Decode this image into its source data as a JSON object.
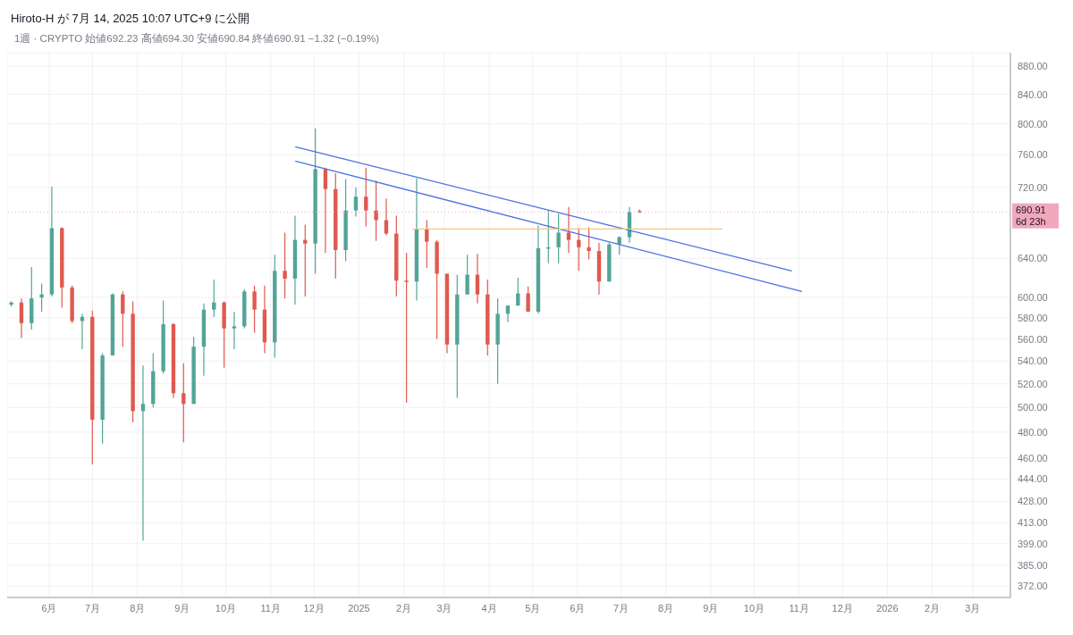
{
  "chart_data": {
    "type": "candlestick",
    "title": "Hiroto-H が 7月 14, 2025 10:07 UTC+9 に公開",
    "subtitle": "1週 · CRYPTO  始値692.23  高値694.30  安値690.84  終値690.91  −1.32 (−0.19%)",
    "x": [
      "2024-05-06",
      "2024-05-13",
      "2024-05-20",
      "2024-05-27",
      "2024-06-03",
      "2024-06-10",
      "2024-06-17",
      "2024-06-24",
      "2024-07-01",
      "2024-07-08",
      "2024-07-15",
      "2024-07-22",
      "2024-07-29",
      "2024-08-05",
      "2024-08-12",
      "2024-08-19",
      "2024-08-26",
      "2024-09-02",
      "2024-09-09",
      "2024-09-16",
      "2024-09-23",
      "2024-09-30",
      "2024-10-07",
      "2024-10-14",
      "2024-10-21",
      "2024-10-28",
      "2024-11-04",
      "2024-11-11",
      "2024-11-18",
      "2024-11-25",
      "2024-12-02",
      "2024-12-09",
      "2024-12-16",
      "2024-12-23",
      "2024-12-30",
      "2025-01-06",
      "2025-01-13",
      "2025-01-20",
      "2025-01-27",
      "2025-02-03",
      "2025-02-10",
      "2025-02-17",
      "2025-02-24",
      "2025-03-03",
      "2025-03-10",
      "2025-03-17",
      "2025-03-24",
      "2025-03-31",
      "2025-04-07",
      "2025-04-14",
      "2025-04-21",
      "2025-04-28",
      "2025-05-05",
      "2025-05-12",
      "2025-05-19",
      "2025-05-26",
      "2025-06-02",
      "2025-06-09",
      "2025-06-16",
      "2025-06-23",
      "2025-06-30",
      "2025-07-07",
      "2025-07-14"
    ],
    "ohlc": [
      [
        593,
        596,
        591,
        595
      ],
      [
        595,
        599,
        561,
        575
      ],
      [
        575,
        631,
        569,
        599
      ],
      [
        600,
        614,
        586,
        603
      ],
      [
        603,
        721,
        601,
        673
      ],
      [
        673,
        674,
        590,
        610
      ],
      [
        610,
        612,
        575,
        577
      ],
      [
        577,
        584,
        551,
        581
      ],
      [
        581,
        587,
        455,
        490
      ],
      [
        490,
        547,
        471,
        545
      ],
      [
        545,
        604,
        545,
        603
      ],
      [
        603,
        606,
        553,
        584
      ],
      [
        584,
        596,
        488,
        497
      ],
      [
        497,
        536,
        401,
        503
      ],
      [
        503,
        547,
        500,
        531
      ],
      [
        531,
        597,
        529,
        574
      ],
      [
        574,
        575,
        508,
        512
      ],
      [
        512,
        538,
        472,
        503
      ],
      [
        503,
        562,
        503,
        553
      ],
      [
        553,
        594,
        527,
        588
      ],
      [
        588,
        618,
        581,
        595
      ],
      [
        595,
        596,
        534,
        570
      ],
      [
        570,
        586,
        551,
        572
      ],
      [
        572,
        608,
        570,
        606
      ],
      [
        606,
        612,
        566,
        588
      ],
      [
        588,
        612,
        547,
        557
      ],
      [
        557,
        644,
        543,
        627
      ],
      [
        627,
        668,
        599,
        619
      ],
      [
        619,
        687,
        593,
        660
      ],
      [
        660,
        677,
        601,
        656
      ],
      [
        656,
        794,
        624,
        742
      ],
      [
        742,
        744,
        646,
        718
      ],
      [
        718,
        737,
        619,
        649
      ],
      [
        649,
        730,
        637,
        693
      ],
      [
        693,
        720,
        686,
        709
      ],
      [
        709,
        744,
        675,
        693
      ],
      [
        693,
        728,
        659,
        682
      ],
      [
        682,
        707,
        665,
        667
      ],
      [
        667,
        687,
        601,
        617
      ],
      [
        617,
        646,
        504,
        616
      ],
      [
        616,
        731,
        597,
        672
      ],
      [
        672,
        682,
        630,
        658
      ],
      [
        658,
        660,
        560,
        624
      ],
      [
        624,
        624,
        547,
        555
      ],
      [
        555,
        623,
        508,
        603
      ],
      [
        603,
        644,
        603,
        623
      ],
      [
        623,
        645,
        594,
        603
      ],
      [
        603,
        618,
        545,
        555
      ],
      [
        555,
        599,
        520,
        584
      ],
      [
        584,
        592,
        576,
        592
      ],
      [
        592,
        620,
        592,
        604
      ],
      [
        604,
        611,
        586,
        586
      ],
      [
        586,
        676,
        584,
        651
      ],
      [
        651,
        693,
        635,
        652
      ],
      [
        652,
        689,
        635,
        668
      ],
      [
        668,
        697,
        646,
        660
      ],
      [
        660,
        673,
        627,
        652
      ],
      [
        652,
        674,
        639,
        648
      ],
      [
        648,
        657,
        603,
        616
      ],
      [
        616,
        657,
        616,
        655
      ],
      [
        655,
        664,
        644,
        663
      ],
      [
        663,
        697,
        657,
        691
      ],
      [
        692.23,
        694.3,
        690.84,
        690.91
      ]
    ],
    "colors": [
      "#52a596",
      "#e0594f",
      "#52a596",
      "#52a596",
      "#52a596",
      "#e0594f",
      "#e0594f",
      "#52a596",
      "#e0594f",
      "#52a596",
      "#52a596",
      "#e0594f",
      "#e0594f",
      "#52a596",
      "#52a596",
      "#52a596",
      "#e0594f",
      "#e0594f",
      "#52a596",
      "#52a596",
      "#52a596",
      "#e0594f",
      "#52a596",
      "#52a596",
      "#e0594f",
      "#e0594f",
      "#52a596",
      "#e0594f",
      "#52a596",
      "#e0594f",
      "#52a596",
      "#e0594f",
      "#e0594f",
      "#52a596",
      "#52a596",
      "#e0594f",
      "#e0594f",
      "#e0594f",
      "#e0594f",
      "#e0594f",
      "#52a596",
      "#e0594f",
      "#e0594f",
      "#e0594f",
      "#52a596",
      "#52a596",
      "#e0594f",
      "#e0594f",
      "#52a596",
      "#52a596",
      "#52a596",
      "#e0594f",
      "#52a596",
      "#52a596",
      "#52a596",
      "#e0594f",
      "#e0594f",
      "#e0594f",
      "#e0594f",
      "#52a596",
      "#52a596",
      "#52a596",
      "#e0594f"
    ],
    "series": [
      {
        "type": "line",
        "x": [
          "2024-11-18",
          "2025-10-27"
        ],
        "values": [
          770,
          627
        ],
        "color": "#4a72e0"
      },
      {
        "type": "line",
        "x": [
          "2024-11-18",
          "2025-11-03"
        ],
        "values": [
          752,
          606
        ],
        "color": "#4a72e0"
      },
      {
        "type": "line",
        "x": [
          "2025-02-07",
          "2025-09-09"
        ],
        "values": [
          672,
          672
        ],
        "color": "#f5c57f"
      }
    ],
    "ref_lines": [
      {
        "axis": "y",
        "value": 690.91,
        "label": "690.91 6d 23h",
        "color": "#f2a7bd",
        "line_style": "dotted"
      }
    ],
    "log": "y",
    "grid": true,
    "xlim": [
      "2024-05-03",
      "2026-03-27"
    ],
    "xticks": [
      {
        "value": "2024-06",
        "label": "6月"
      },
      {
        "value": "2024-07",
        "label": "7月"
      },
      {
        "value": "2024-08",
        "label": "8月"
      },
      {
        "value": "2024-09",
        "label": "9月"
      },
      {
        "value": "2024-10",
        "label": "10月"
      },
      {
        "value": "2024-11",
        "label": "11月"
      },
      {
        "value": "2024-12",
        "label": "12月"
      },
      {
        "value": "2025-01",
        "label": "2025"
      },
      {
        "value": "2025-02",
        "label": "2月"
      },
      {
        "value": "2025-03",
        "label": "3月"
      },
      {
        "value": "2025-04",
        "label": "4月"
      },
      {
        "value": "2025-05",
        "label": "5月"
      },
      {
        "value": "2025-06",
        "label": "6月"
      },
      {
        "value": "2025-07",
        "label": "7月"
      },
      {
        "value": "2025-08",
        "label": "8月"
      },
      {
        "value": "2025-09",
        "label": "9月"
      },
      {
        "value": "2025-10",
        "label": "10月"
      },
      {
        "value": "2025-11",
        "label": "11月"
      },
      {
        "value": "2025-12",
        "label": "12月"
      },
      {
        "value": "2026-01",
        "label": "2026"
      },
      {
        "value": "2026-02",
        "label": "2月"
      },
      {
        "value": "2026-03",
        "label": "3月"
      }
    ],
    "ylim": [
      365,
      900
    ],
    "yticks": [
      {
        "value": 372,
        "label": "372.00"
      },
      {
        "value": 385,
        "label": "385.00"
      },
      {
        "value": 399,
        "label": "399.00"
      },
      {
        "value": 413,
        "label": "413.00"
      },
      {
        "value": 428,
        "label": "428.00"
      },
      {
        "value": 444,
        "label": "444.00"
      },
      {
        "value": 460,
        "label": "460.00"
      },
      {
        "value": 480,
        "label": "480.00"
      },
      {
        "value": 500,
        "label": "500.00"
      },
      {
        "value": 520,
        "label": "520.00"
      },
      {
        "value": 540,
        "label": "540.00"
      },
      {
        "value": 560,
        "label": "560.00"
      },
      {
        "value": 580,
        "label": "580.00"
      },
      {
        "value": 600,
        "label": "600.00"
      },
      {
        "value": 640,
        "label": "640.00"
      },
      {
        "value": 720,
        "label": "720.00"
      },
      {
        "value": 760,
        "label": "760.00"
      },
      {
        "value": 800,
        "label": "800.00"
      },
      {
        "value": 840,
        "label": "840.00"
      },
      {
        "value": 880,
        "label": "880.00"
      }
    ]
  }
}
